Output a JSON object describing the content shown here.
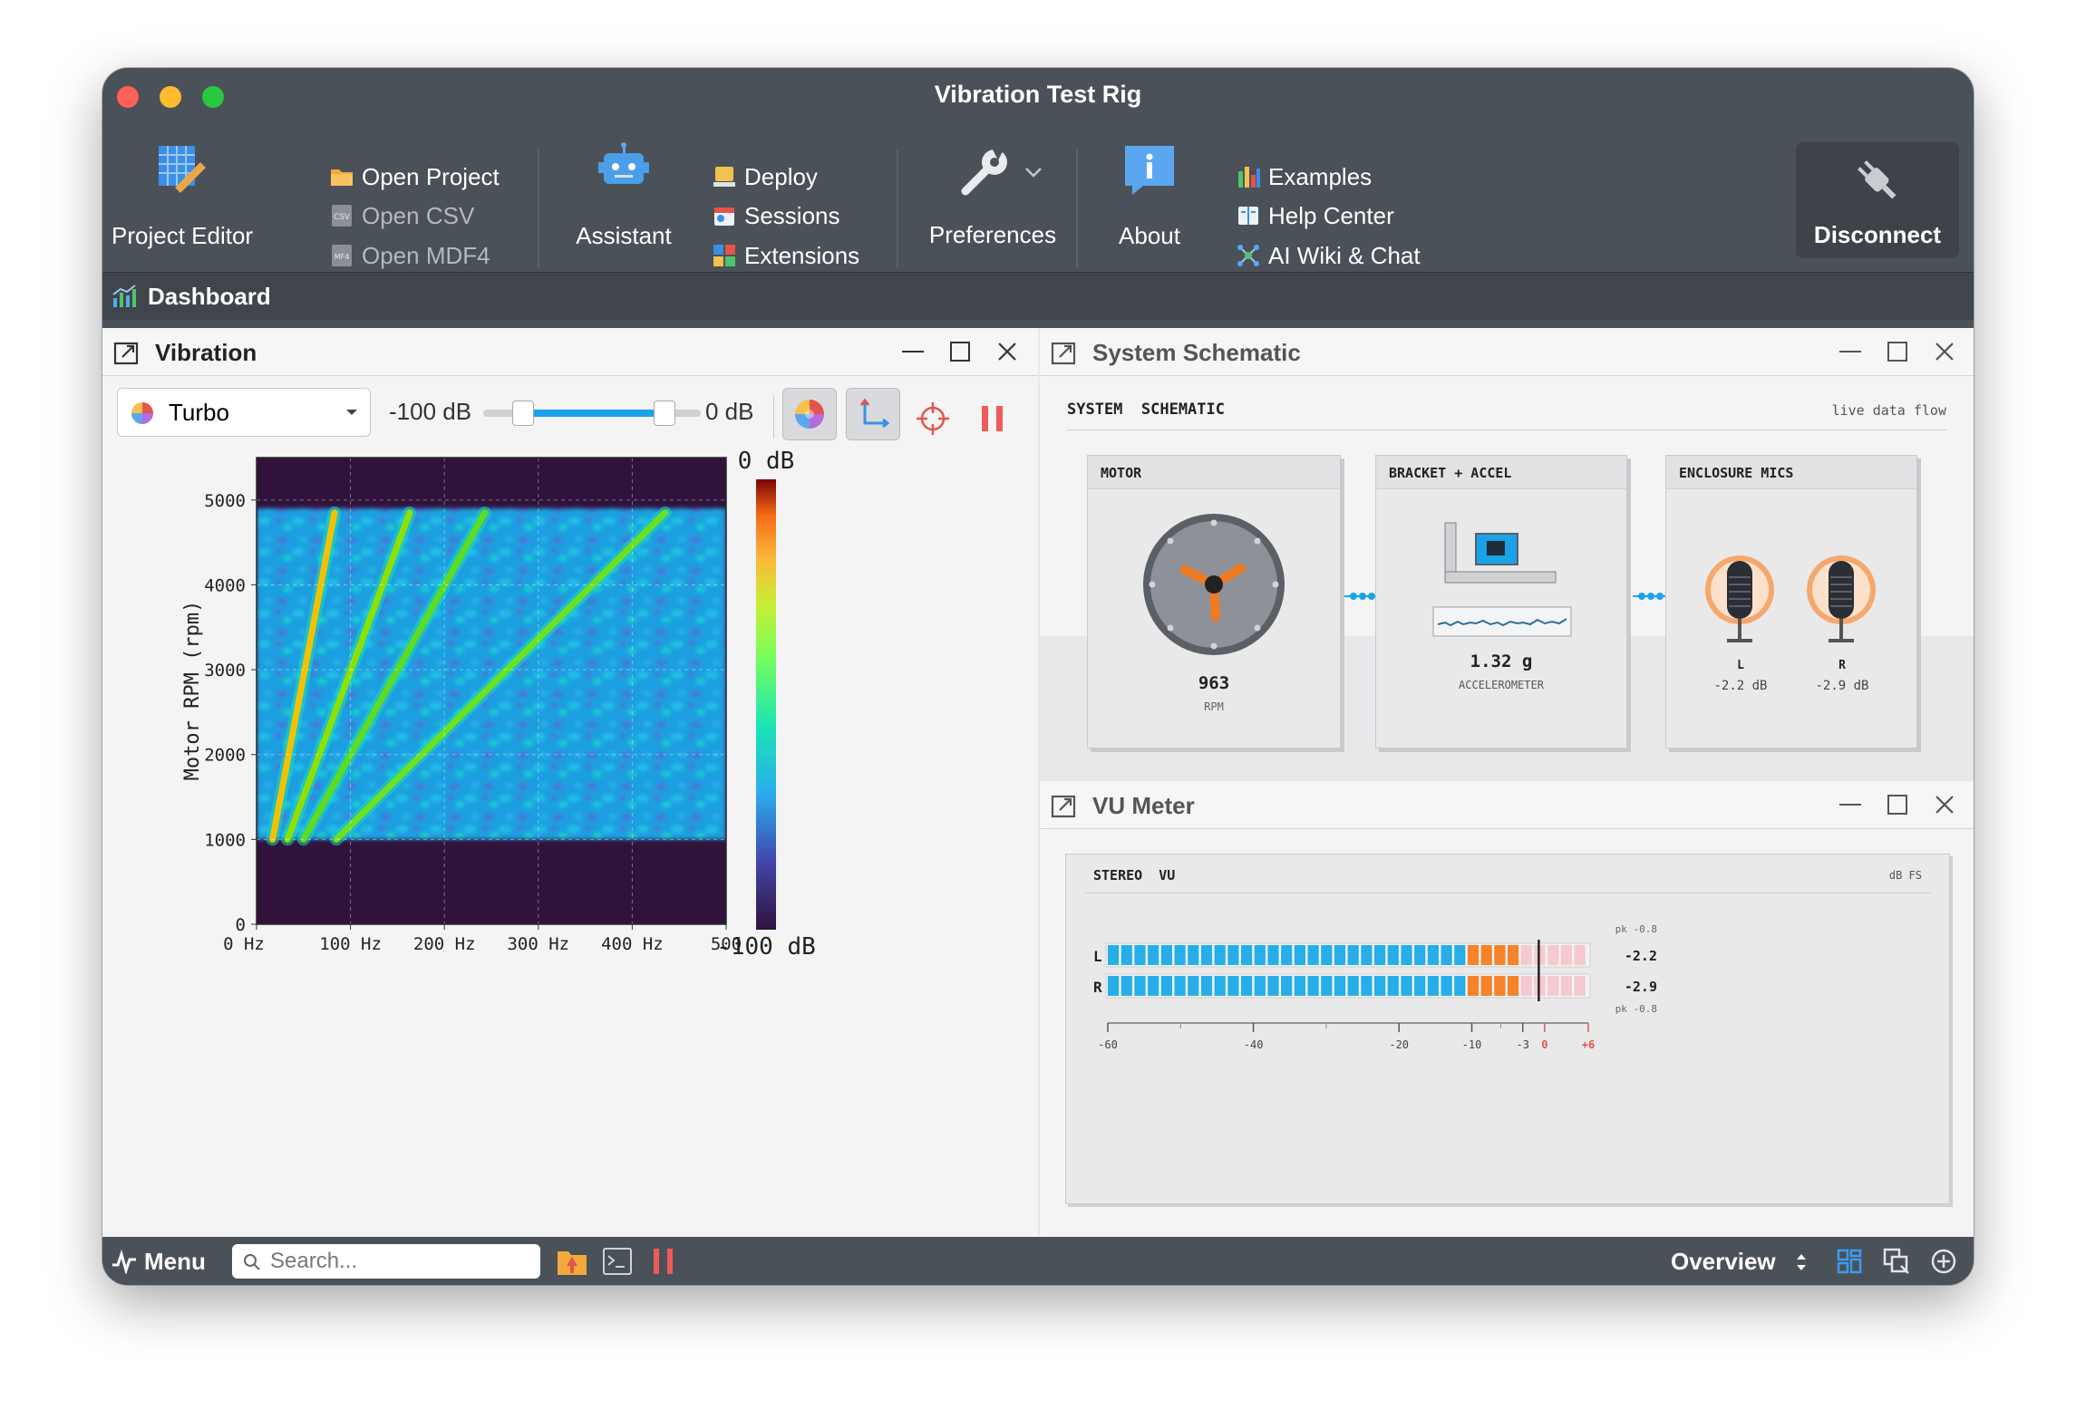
{
  "window": {
    "title": "Vibration Test Rig"
  },
  "toolbar": {
    "project_editor": "Project Editor",
    "open_project": "Open Project",
    "open_csv": "Open CSV",
    "open_mdf4": "Open MDF4",
    "assistant": "Assistant",
    "deploy": "Deploy",
    "sessions": "Sessions",
    "extensions": "Extensions",
    "preferences": "Preferences",
    "about": "About",
    "examples": "Examples",
    "help_center": "Help Center",
    "ai_wiki": "AI Wiki & Chat",
    "disconnect": "Disconnect"
  },
  "dashboard": {
    "title": "Dashboard"
  },
  "vibration": {
    "title": "Vibration",
    "colormap": "Turbo",
    "range_min_label": "-100 dB",
    "range_max_label": "0 dB",
    "range_low_fraction": 0.18,
    "range_high_fraction": 0.83
  },
  "chart_data": {
    "type": "heatmap",
    "title": "",
    "xlabel": "",
    "ylabel": "Motor RPM (rpm)",
    "xlim": [
      0,
      500
    ],
    "ylim": [
      0,
      5500
    ],
    "x_ticks": [
      "0 Hz",
      "100 Hz",
      "200 Hz",
      "300 Hz",
      "400 Hz",
      "500"
    ],
    "y_ticks": [
      "0",
      "1000",
      "2000",
      "3000",
      "4000",
      "5000"
    ],
    "data_rpm_range": [
      1000,
      4900
    ],
    "colorbar": {
      "max_label": "0 dB",
      "min_label": "-100 dB",
      "colormap": "Turbo"
    },
    "orders": [
      {
        "x_start": 17,
        "x_end": 83,
        "rpm_start": 1000,
        "rpm_end": 4850,
        "color": "#f2c200"
      },
      {
        "x_start": 33,
        "x_end": 163,
        "rpm_start": 1000,
        "rpm_end": 4850,
        "color": "#8fe000"
      },
      {
        "x_start": 50,
        "x_end": 243,
        "rpm_start": 1000,
        "rpm_end": 4850,
        "color": "#5fdc20"
      },
      {
        "x_start": 85,
        "x_end": 435,
        "rpm_start": 1000,
        "rpm_end": 4850,
        "color": "#6fe020"
      }
    ]
  },
  "schematic": {
    "title": "System Schematic",
    "header_left": "SYSTEM  SCHEMATIC",
    "header_right": "live data flow",
    "motor": {
      "title": "MOTOR",
      "value": "963",
      "unit": "RPM"
    },
    "bracket": {
      "title": "BRACKET + ACCEL",
      "value": "1.32 g",
      "unit": "ACCELEROMETER"
    },
    "mics": {
      "title": "ENCLOSURE MICS",
      "left_label": "L",
      "left_value": "-2.2 dB",
      "right_label": "R",
      "right_value": "-2.9 dB"
    }
  },
  "vu": {
    "title": "VU Meter",
    "header_left": "STEREO  VU",
    "header_right": "dB FS",
    "left": {
      "label": "L",
      "value": "-2.2",
      "peak": "pk -0.8",
      "level_db": -2.2
    },
    "right": {
      "label": "R",
      "value": "-2.9",
      "peak": "pk -0.8",
      "level_db": -2.9
    },
    "scale": [
      "-60",
      "-40",
      "-20",
      "-10",
      "-3",
      "0",
      "+6"
    ]
  },
  "statusbar": {
    "menu": "Menu",
    "search_placeholder": "Search...",
    "view": "Overview"
  }
}
